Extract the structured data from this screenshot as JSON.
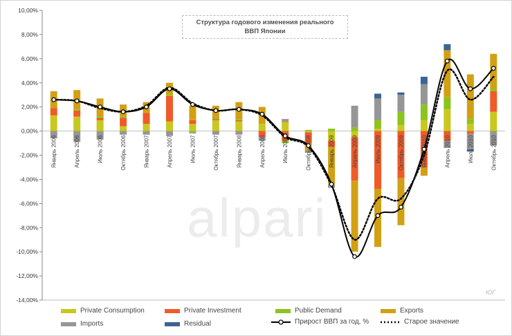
{
  "title_line1": "Структура годового изменения реального",
  "title_line2": "ВВП Японии",
  "watermark": "alpari",
  "signature": "ЮГ",
  "chart_data": {
    "type": "bar",
    "stacked": true,
    "ylim": [
      -14,
      10
    ],
    "y_ticks": [
      "10,00%",
      "8,00%",
      "6,00%",
      "4,00%",
      "2,00%",
      "0,00%",
      "-2,00%",
      "-4,00%",
      "-6,00%",
      "-8,00%",
      "-10,00%",
      "-12,00%",
      "-14,00%"
    ],
    "categories": [
      "Январь 2006",
      "Апрель 2006",
      "Июль 2006",
      "Октябрь 2006",
      "Январь 2007",
      "Апрель 2007",
      "Июль 2007",
      "Октябрь 2007",
      "Январь 2008",
      "Апрель 2008",
      "Июль 2008",
      "Октябрь 2008",
      "Январь 2009",
      "Апрель 2009",
      "Июль 2009",
      "Октябрь 2009",
      "Январь 2010",
      "Апрель 2010",
      "Июль 2010",
      "Октябрь 2010"
    ],
    "x_tick_labels": [
      "Январь 2006",
      "Апрель 2006",
      "Июль 2006",
      "Октябрь 2006",
      "Январь 2007",
      "Апрель 2007",
      "Июль 2007",
      "Октябрь 2007",
      "Январь 2008",
      "Апрель 2008",
      "Июль 2008",
      "Октябрь 2008",
      "Январь 2009",
      "Апрель 2009",
      "Июль 2009",
      "Октябрь 2009",
      "Январь 2010",
      "Апрель 2010",
      "Июль 2010",
      "Октябрь 2010"
    ],
    "series": [
      {
        "name": "Private Consumption",
        "color": "#c8c81e",
        "values": [
          1.3,
          1.2,
          0.9,
          0.4,
          0.6,
          0.8,
          0.6,
          0.9,
          0.8,
          0.6,
          0.7,
          -0.1,
          -0.8,
          -0.5,
          0.2,
          0.5,
          0.9,
          1.8,
          0.6,
          1.6
        ]
      },
      {
        "name": "Private Investment",
        "color": "#f05a28",
        "values": [
          0.6,
          0.5,
          0.2,
          0.7,
          0.9,
          2.1,
          0.3,
          0.1,
          0.1,
          -0.5,
          -0.8,
          -0.9,
          -0.5,
          -3.6,
          -4.8,
          -3.9,
          -3.0,
          -0.8,
          -0.2,
          1.7
        ]
      },
      {
        "name": "Public Demand",
        "color": "#8cc31e",
        "values": [
          0.0,
          0.1,
          0.1,
          0.1,
          0.0,
          0.1,
          -0.1,
          0.1,
          0.1,
          0.0,
          -0.2,
          0.1,
          0.2,
          0.3,
          0.7,
          1.1,
          1.3,
          1.0,
          0.4,
          0.2
        ]
      },
      {
        "name": "Exports",
        "color": "#d2a014",
        "values": [
          1.4,
          1.6,
          1.5,
          1.0,
          0.9,
          1.0,
          1.2,
          1.0,
          1.4,
          1.4,
          0.1,
          -0.6,
          -3.1,
          -5.9,
          -4.8,
          -3.9,
          -0.7,
          3.9,
          3.7,
          2.9
        ]
      },
      {
        "name": "Imports",
        "color": "#969696",
        "values": [
          -0.6,
          -0.9,
          -0.7,
          -0.3,
          -0.3,
          -0.4,
          -0.1,
          -0.3,
          -0.3,
          -0.3,
          0.2,
          -0.2,
          -0.3,
          1.8,
          1.8,
          1.4,
          1.7,
          -0.6,
          -1.3,
          -1.2
        ]
      },
      {
        "name": "Residual",
        "color": "#3c6496",
        "values": [
          0.0,
          0.0,
          0.0,
          0.0,
          0.0,
          0.0,
          0.0,
          0.0,
          0.0,
          0.0,
          0.0,
          0.0,
          0.0,
          0.0,
          0.4,
          0.2,
          0.6,
          0.5,
          -0.2,
          0.0
        ]
      }
    ],
    "lines": [
      {
        "name": "Прирост ВВП за год, %",
        "color": "#000000",
        "style": "solid",
        "markers": true,
        "values": [
          2.6,
          2.5,
          2.0,
          1.6,
          2.0,
          3.5,
          2.2,
          1.7,
          1.8,
          1.4,
          -0.4,
          -1.2,
          -4.4,
          -10.4,
          -7.0,
          -6.3,
          -1.5,
          5.8,
          3.5,
          5.2
        ]
      },
      {
        "name": "Старое значение",
        "color": "#000000",
        "style": "dotted",
        "markers": false,
        "values": [
          2.6,
          2.5,
          1.9,
          1.6,
          2.1,
          3.6,
          2.3,
          1.7,
          1.8,
          1.3,
          -0.5,
          -1.3,
          -4.5,
          -9.0,
          -5.6,
          -5.6,
          -2.0,
          5.0,
          2.6,
          4.5
        ]
      }
    ],
    "legend_position": "bottom",
    "grid": true
  }
}
